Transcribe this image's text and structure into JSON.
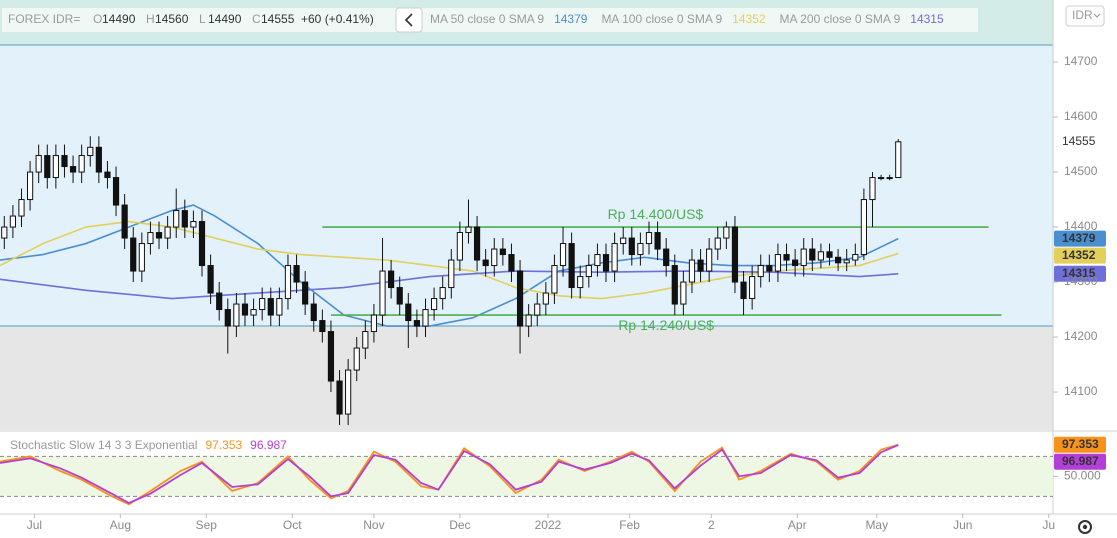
{
  "header": {
    "symbol": "FOREX IDR=",
    "ohlc_labels": [
      "O",
      "H",
      "L",
      "C"
    ],
    "change": "+60 (+0.41%)",
    "currency": "IDR"
  },
  "chart_data": [
    {
      "type": "candlestick",
      "xlim": [
        0,
        245
      ],
      "ylim": [
        14031,
        14731
      ],
      "yticks": [
        14100,
        14200,
        14300,
        14400,
        14500,
        14600,
        14700
      ],
      "xticks": [
        {
          "value": 8,
          "label": "Jul"
        },
        {
          "value": 28,
          "label": "Aug"
        },
        {
          "value": 48,
          "label": "Sep"
        },
        {
          "value": 68,
          "label": "Oct"
        },
        {
          "value": 87,
          "label": "Nov"
        },
        {
          "value": 107,
          "label": "Dec"
        },
        {
          "value": 127.5,
          "label": "2022"
        },
        {
          "value": 146.5,
          "label": "Feb"
        },
        {
          "value": 165.5,
          "label": "2"
        },
        {
          "value": 185.5,
          "label": "Apr"
        },
        {
          "value": 204,
          "label": "May"
        },
        {
          "value": 224,
          "label": "Jun"
        },
        {
          "value": 244,
          "label": "Ju"
        }
      ],
      "candles": {
        "x": [
          1,
          3,
          5,
          7,
          9,
          11,
          13,
          15,
          17,
          19,
          21,
          23,
          25,
          27,
          29,
          31,
          33,
          35,
          37,
          39,
          41,
          43,
          45,
          47,
          49,
          51,
          53,
          55,
          57,
          59,
          61,
          63,
          65,
          67,
          69,
          71,
          73,
          75,
          77,
          79,
          81,
          83,
          85,
          87,
          89,
          91,
          93,
          95,
          97,
          99,
          101,
          103,
          105,
          107,
          109,
          111,
          113,
          115,
          117,
          119,
          121,
          123,
          125,
          127,
          129,
          131,
          133,
          135,
          137,
          139,
          141,
          143,
          145,
          147,
          149,
          151,
          153,
          155,
          157,
          159,
          161,
          163,
          165,
          167,
          169,
          171,
          173,
          175,
          177,
          179,
          181,
          183,
          185,
          187,
          189,
          191,
          193,
          195,
          197,
          199,
          201,
          203,
          205,
          207,
          209
        ],
        "ohlc": [
          [
            14380,
            14420,
            14360,
            14400
          ],
          [
            14400,
            14440,
            14380,
            14420
          ],
          [
            14420,
            14470,
            14400,
            14450
          ],
          [
            14450,
            14520,
            14430,
            14500
          ],
          [
            14500,
            14550,
            14480,
            14530
          ],
          [
            14530,
            14550,
            14470,
            14490
          ],
          [
            14490,
            14550,
            14470,
            14530
          ],
          [
            14530,
            14550,
            14490,
            14510
          ],
          [
            14510,
            14530,
            14480,
            14500
          ],
          [
            14500,
            14550,
            14480,
            14530
          ],
          [
            14530,
            14565,
            14510,
            14545
          ],
          [
            14545,
            14565,
            14480,
            14500
          ],
          [
            14500,
            14520,
            14470,
            14490
          ],
          [
            14490,
            14510,
            14420,
            14440
          ],
          [
            14440,
            14460,
            14360,
            14380
          ],
          [
            14380,
            14400,
            14300,
            14320
          ],
          [
            14320,
            14390,
            14300,
            14370
          ],
          [
            14370,
            14410,
            14350,
            14390
          ],
          [
            14390,
            14410,
            14360,
            14380
          ],
          [
            14380,
            14420,
            14360,
            14400
          ],
          [
            14400,
            14470,
            14380,
            14430
          ],
          [
            14430,
            14450,
            14380,
            14400
          ],
          [
            14400,
            14430,
            14380,
            14410
          ],
          [
            14410,
            14430,
            14310,
            14330
          ],
          [
            14330,
            14350,
            14260,
            14280
          ],
          [
            14280,
            14300,
            14230,
            14250
          ],
          [
            14250,
            14270,
            14170,
            14220
          ],
          [
            14220,
            14280,
            14200,
            14260
          ],
          [
            14260,
            14280,
            14220,
            14240
          ],
          [
            14240,
            14270,
            14220,
            14250
          ],
          [
            14250,
            14290,
            14230,
            14270
          ],
          [
            14270,
            14290,
            14220,
            14240
          ],
          [
            14240,
            14290,
            14220,
            14270
          ],
          [
            14270,
            14350,
            14250,
            14330
          ],
          [
            14330,
            14350,
            14280,
            14300
          ],
          [
            14300,
            14320,
            14240,
            14260
          ],
          [
            14260,
            14280,
            14210,
            14230
          ],
          [
            14230,
            14250,
            14190,
            14210
          ],
          [
            14210,
            14230,
            14100,
            14120
          ],
          [
            14120,
            14140,
            14040,
            14060
          ],
          [
            14060,
            14160,
            14040,
            14140
          ],
          [
            14140,
            14200,
            14120,
            14180
          ],
          [
            14180,
            14230,
            14160,
            14210
          ],
          [
            14210,
            14260,
            14190,
            14240
          ],
          [
            14240,
            14380,
            14220,
            14320
          ],
          [
            14320,
            14340,
            14270,
            14290
          ],
          [
            14290,
            14310,
            14240,
            14260
          ],
          [
            14260,
            14280,
            14180,
            14230
          ],
          [
            14230,
            14250,
            14200,
            14220
          ],
          [
            14220,
            14270,
            14200,
            14250
          ],
          [
            14250,
            14290,
            14230,
            14270
          ],
          [
            14270,
            14310,
            14250,
            14290
          ],
          [
            14290,
            14360,
            14270,
            14340
          ],
          [
            14340,
            14410,
            14320,
            14390
          ],
          [
            14390,
            14450,
            14370,
            14400
          ],
          [
            14400,
            14420,
            14320,
            14340
          ],
          [
            14340,
            14360,
            14310,
            14330
          ],
          [
            14330,
            14380,
            14310,
            14360
          ],
          [
            14360,
            14380,
            14330,
            14350
          ],
          [
            14350,
            14370,
            14300,
            14320
          ],
          [
            14320,
            14340,
            14170,
            14220
          ],
          [
            14220,
            14260,
            14200,
            14240
          ],
          [
            14240,
            14280,
            14220,
            14260
          ],
          [
            14260,
            14300,
            14240,
            14280
          ],
          [
            14280,
            14350,
            14260,
            14330
          ],
          [
            14330,
            14400,
            14310,
            14370
          ],
          [
            14370,
            14390,
            14270,
            14290
          ],
          [
            14290,
            14330,
            14270,
            14310
          ],
          [
            14310,
            14350,
            14290,
            14330
          ],
          [
            14330,
            14370,
            14310,
            14350
          ],
          [
            14350,
            14370,
            14300,
            14320
          ],
          [
            14320,
            14390,
            14300,
            14370
          ],
          [
            14370,
            14400,
            14350,
            14380
          ],
          [
            14380,
            14400,
            14330,
            14350
          ],
          [
            14350,
            14390,
            14330,
            14370
          ],
          [
            14370,
            14410,
            14350,
            14390
          ],
          [
            14390,
            14410,
            14340,
            14360
          ],
          [
            14360,
            14380,
            14310,
            14330
          ],
          [
            14330,
            14350,
            14240,
            14260
          ],
          [
            14260,
            14320,
            14240,
            14300
          ],
          [
            14300,
            14360,
            14280,
            14340
          ],
          [
            14340,
            14360,
            14300,
            14320
          ],
          [
            14320,
            14380,
            14300,
            14360
          ],
          [
            14360,
            14400,
            14340,
            14380
          ],
          [
            14380,
            14410,
            14360,
            14400
          ],
          [
            14400,
            14420,
            14280,
            14300
          ],
          [
            14300,
            14320,
            14240,
            14270
          ],
          [
            14270,
            14330,
            14250,
            14310
          ],
          [
            14310,
            14350,
            14290,
            14330
          ],
          [
            14330,
            14350,
            14300,
            14320
          ],
          [
            14320,
            14370,
            14300,
            14350
          ],
          [
            14350,
            14370,
            14320,
            14340
          ],
          [
            14340,
            14360,
            14310,
            14330
          ],
          [
            14330,
            14380,
            14310,
            14360
          ],
          [
            14360,
            14380,
            14320,
            14340
          ],
          [
            14340,
            14370,
            14325,
            14355
          ],
          [
            14355,
            14370,
            14330,
            14345
          ],
          [
            14345,
            14360,
            14320,
            14335
          ],
          [
            14335,
            14360,
            14320,
            14340
          ],
          [
            14340,
            14370,
            14330,
            14350
          ],
          [
            14350,
            14470,
            14340,
            14450
          ],
          [
            14450,
            14500,
            14400,
            14490
          ],
          [
            14490,
            14495,
            14485,
            14490
          ],
          [
            14490,
            14495,
            14485,
            14490
          ],
          [
            14490,
            14560,
            14490,
            14555
          ]
        ]
      },
      "series": [
        {
          "name": "MA 50 close 0 SMA 9",
          "color": "#4a8fd0",
          "x": [
            0,
            10,
            20,
            30,
            40,
            45,
            50,
            60,
            70,
            80,
            90,
            100,
            110,
            120,
            130,
            140,
            150,
            160,
            170,
            180,
            190,
            200,
            209
          ],
          "values": [
            14340,
            14350,
            14370,
            14400,
            14430,
            14440,
            14420,
            14370,
            14300,
            14240,
            14220,
            14220,
            14235,
            14270,
            14320,
            14335,
            14345,
            14335,
            14330,
            14330,
            14335,
            14345,
            14379
          ]
        },
        {
          "name": "MA 100 close 0 SMA 9",
          "color": "#e3cf5c",
          "x": [
            0,
            10,
            20,
            30,
            40,
            50,
            60,
            70,
            80,
            90,
            100,
            110,
            120,
            130,
            140,
            150,
            160,
            170,
            180,
            190,
            200,
            209
          ],
          "values": [
            14330,
            14370,
            14400,
            14410,
            14400,
            14380,
            14360,
            14350,
            14345,
            14340,
            14330,
            14320,
            14290,
            14275,
            14270,
            14280,
            14295,
            14310,
            14320,
            14325,
            14330,
            14352
          ]
        },
        {
          "name": "MA 200 close 0 SMA 9",
          "color": "#6f6fd8",
          "x": [
            0,
            20,
            40,
            60,
            80,
            100,
            120,
            140,
            160,
            180,
            200,
            209
          ],
          "values": [
            14305,
            14285,
            14270,
            14280,
            14290,
            14310,
            14320,
            14318,
            14320,
            14318,
            14310,
            14315
          ]
        }
      ],
      "annotations": [
        {
          "label": "Rp 14.400/US$",
          "value": 14400,
          "x": [
            75,
            230
          ]
        },
        {
          "label": "Rp 14.240/US$",
          "value": 14240,
          "x": [
            77,
            233
          ]
        }
      ],
      "annotation_color": "#4caf50"
    },
    {
      "type": "line",
      "title": "Stochastic Slow 14 3 3 Exponential",
      "xlim": [
        0,
        245
      ],
      "ylim": [
        -5,
        115
      ],
      "yticks": [
        {
          "value": 50,
          "label": "50.000"
        }
      ],
      "bands": [
        20,
        80
      ],
      "x": [
        0,
        7,
        14,
        19,
        26,
        30,
        35,
        42,
        47,
        54,
        60,
        67,
        72,
        77,
        81,
        87,
        92,
        98,
        102,
        108,
        114,
        120,
        126,
        130,
        136,
        142,
        147,
        151,
        157,
        163,
        168,
        172,
        177,
        184,
        190,
        195,
        200,
        205,
        209
      ],
      "series": [
        {
          "color": "#f7931a",
          "values": [
            72,
            80,
            58,
            45,
            20,
            8,
            28,
            58,
            72,
            28,
            40,
            80,
            45,
            17,
            28,
            87,
            72,
            35,
            30,
            92,
            65,
            25,
            45,
            75,
            58,
            72,
            87,
            72,
            28,
            72,
            93,
            45,
            58,
            84,
            72,
            45,
            58,
            90,
            97.353
          ]
        },
        {
          "color": "#b43fd8",
          "values": [
            70,
            77,
            62,
            48,
            24,
            10,
            24,
            52,
            70,
            34,
            38,
            76,
            50,
            20,
            25,
            82,
            75,
            40,
            30,
            88,
            68,
            30,
            42,
            72,
            60,
            70,
            84,
            74,
            32,
            66,
            90,
            50,
            55,
            82,
            74,
            48,
            55,
            86,
            96.987
          ]
        }
      ]
    }
  ]
}
